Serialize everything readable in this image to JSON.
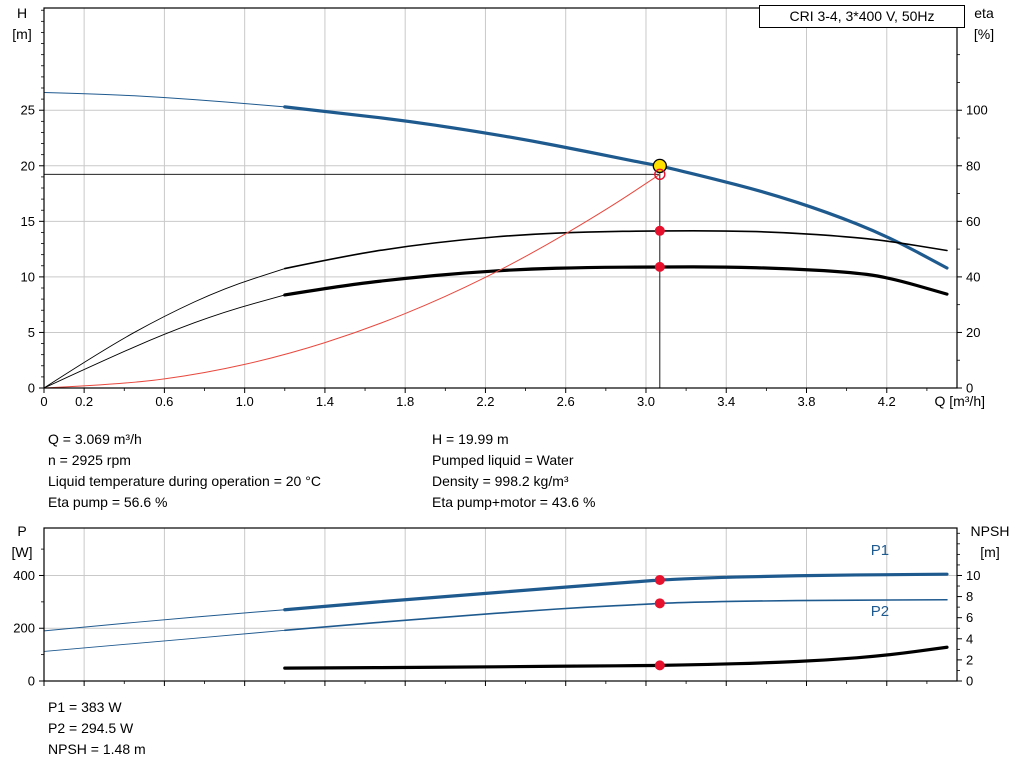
{
  "title_box": {
    "label": "CRI 3-4, 3*400 V, 50Hz"
  },
  "duty_info": {
    "left": [
      "Q = 3.069 m³/h",
      "n = 2925 rpm",
      "Liquid temperature during operation = 20 °C",
      "Eta pump = 56.6 %"
    ],
    "right": [
      "H = 19.99 m",
      "Pumped liquid = Water",
      "Density = 998.2 kg/m³",
      "Eta pump+motor = 43.6 %"
    ]
  },
  "result_info": [
    "P1 = 383 W",
    "P2 = 294.5 W",
    "NPSH = 1.48 m"
  ],
  "colors": {
    "curve_blue": "#1f5a8f",
    "curve_black": "#000000",
    "curve_red": "#e8483e",
    "marker_red": "#e8112d",
    "marker_yellow": "#ffe000",
    "grid": "#c9c9c9"
  },
  "chart_data": [
    {
      "type": "line",
      "name": "qh-eta-chart",
      "title": "CRI 3-4, 3*400 V, 50Hz",
      "x_label": "Q [m³/h]",
      "y_left_label": [
        "H",
        "[m]"
      ],
      "y_right_label": [
        "eta",
        "[%]"
      ],
      "x_range": [
        0,
        4.55
      ],
      "y_left_range": [
        0,
        34.2
      ],
      "y_right_range": [
        0,
        136.8
      ],
      "x_ticks": [
        [
          0,
          "0"
        ],
        [
          0.2,
          "0.2"
        ],
        [
          0.6,
          "0.6"
        ],
        [
          1.0,
          "1.0"
        ],
        [
          1.4,
          "1.4"
        ],
        [
          1.8,
          "1.8"
        ],
        [
          2.2,
          "2.2"
        ],
        [
          2.6,
          "2.6"
        ],
        [
          3.0,
          "3.0"
        ],
        [
          3.4,
          "3.4"
        ],
        [
          3.8,
          "3.8"
        ],
        [
          4.2,
          "4.2"
        ]
      ],
      "x_minor_step": 0.2,
      "y_left_ticks": [
        [
          0,
          "0"
        ],
        [
          5,
          "5"
        ],
        [
          10,
          "10"
        ],
        [
          15,
          "15"
        ],
        [
          20,
          "20"
        ],
        [
          25,
          "25"
        ]
      ],
      "y_left_minor_step": 1,
      "y_right_ticks": [
        [
          0,
          "0"
        ],
        [
          20,
          "20"
        ],
        [
          40,
          "40"
        ],
        [
          60,
          "60"
        ],
        [
          80,
          "80"
        ],
        [
          100,
          "100"
        ]
      ],
      "y_right_minor_step": 10,
      "grid": true,
      "series": [
        {
          "name": "h-curve-low-flow",
          "axis": "left",
          "color": "#1f5a8f",
          "width": 1,
          "points": [
            [
              0,
              26.6
            ],
            [
              0.3,
              26.45
            ],
            [
              0.6,
              26.15
            ],
            [
              0.9,
              25.75
            ],
            [
              1.2,
              25.3
            ]
          ]
        },
        {
          "name": "h-curve",
          "axis": "left",
          "color": "#1f5a8f",
          "width": 3.2,
          "points": [
            [
              1.2,
              25.3
            ],
            [
              1.5,
              24.7
            ],
            [
              1.8,
              24.05
            ],
            [
              2.1,
              23.25
            ],
            [
              2.4,
              22.35
            ],
            [
              2.7,
              21.3
            ],
            [
              3.0,
              20.2
            ],
            [
              3.069,
              19.99
            ],
            [
              3.3,
              19.0
            ],
            [
              3.6,
              17.6
            ],
            [
              3.9,
              15.85
            ],
            [
              4.2,
              13.7
            ],
            [
              4.5,
              10.8
            ]
          ]
        },
        {
          "name": "eta-pump-curve-low-flow",
          "axis": "right",
          "color": "#000000",
          "width": 0.9,
          "points": [
            [
              0,
              0
            ],
            [
              0.3,
              14
            ],
            [
              0.6,
              26
            ],
            [
              0.9,
              36
            ],
            [
              1.2,
              43
            ]
          ]
        },
        {
          "name": "eta-pump-curve",
          "axis": "right",
          "color": "#000000",
          "width": 1.6,
          "points": [
            [
              1.2,
              43
            ],
            [
              1.5,
              47.5
            ],
            [
              1.8,
              51
            ],
            [
              2.1,
              53.5
            ],
            [
              2.4,
              55.3
            ],
            [
              2.7,
              56.2
            ],
            [
              3.069,
              56.6
            ],
            [
              3.4,
              56.6
            ],
            [
              3.7,
              56
            ],
            [
              4.0,
              54.5
            ],
            [
              4.2,
              53
            ],
            [
              4.5,
              49.5
            ]
          ]
        },
        {
          "name": "eta-pump-motor-curve-low-flow",
          "axis": "right",
          "color": "#000000",
          "width": 0.9,
          "points": [
            [
              0,
              0
            ],
            [
              0.3,
              10
            ],
            [
              0.6,
              19.5
            ],
            [
              0.9,
              27.5
            ],
            [
              1.2,
              33.5
            ]
          ]
        },
        {
          "name": "eta-pump-motor-curve",
          "axis": "right",
          "color": "#000000",
          "width": 3.2,
          "points": [
            [
              1.2,
              33.5
            ],
            [
              1.5,
              37
            ],
            [
              1.8,
              39.5
            ],
            [
              2.1,
              41.5
            ],
            [
              2.4,
              42.8
            ],
            [
              2.7,
              43.4
            ],
            [
              3.069,
              43.6
            ],
            [
              3.4,
              43.6
            ],
            [
              3.7,
              43
            ],
            [
              4.0,
              41.8
            ],
            [
              4.2,
              40
            ],
            [
              4.5,
              33.8
            ]
          ]
        },
        {
          "name": "system-curve",
          "axis": "left",
          "color": "#e8483e",
          "width": 1,
          "points": [
            [
              0,
              0
            ],
            [
              0.4,
              0.33
            ],
            [
              0.8,
              1.31
            ],
            [
              1.2,
              2.94
            ],
            [
              1.6,
              5.23
            ],
            [
              2.0,
              8.17
            ],
            [
              2.4,
              11.76
            ],
            [
              2.8,
              16.01
            ],
            [
              3.069,
              19.23
            ]
          ]
        }
      ],
      "lines": [
        {
          "name": "duty-head-line",
          "orient": "h",
          "axis": "left",
          "y": 19.23,
          "x1": 0,
          "x2": 3.069,
          "color": "#000000",
          "width": 0.9
        },
        {
          "name": "duty-flow-line",
          "orient": "v",
          "axis": "left",
          "x": 3.069,
          "y1": 0,
          "y2": 19.99,
          "color": "#000000",
          "width": 0.9
        }
      ],
      "markers": [
        {
          "name": "duty-point-marker",
          "x": 3.069,
          "y": 19.99,
          "axis": "left",
          "kind": "yellow"
        },
        {
          "name": "requested-point-marker",
          "x": 3.069,
          "y": 19.23,
          "axis": "left",
          "kind": "red-open"
        },
        {
          "name": "eta-pump-duty-marker",
          "x": 3.069,
          "y": 56.6,
          "axis": "right",
          "kind": "red"
        },
        {
          "name": "eta-pump-motor-duty-marker",
          "x": 3.069,
          "y": 43.6,
          "axis": "right",
          "kind": "red"
        }
      ]
    },
    {
      "type": "line",
      "name": "power-npsh-chart",
      "x_label": "",
      "y_left_label": [
        "P",
        "[W]"
      ],
      "y_right_label": [
        "NPSH",
        "[m]"
      ],
      "x_range": [
        0,
        4.55
      ],
      "y_left_range": [
        0,
        580
      ],
      "y_right_range": [
        0,
        14.5
      ],
      "x_ticks": [
        [
          0,
          ""
        ],
        [
          0.2,
          ""
        ],
        [
          0.6,
          ""
        ],
        [
          1.0,
          ""
        ],
        [
          1.4,
          ""
        ],
        [
          1.8,
          ""
        ],
        [
          2.2,
          ""
        ],
        [
          2.6,
          ""
        ],
        [
          3.0,
          ""
        ],
        [
          3.4,
          ""
        ],
        [
          3.8,
          ""
        ],
        [
          4.2,
          ""
        ]
      ],
      "x_minor_step": 0.2,
      "y_left_ticks": [
        [
          0,
          "0"
        ],
        [
          200,
          "200"
        ],
        [
          400,
          "400"
        ]
      ],
      "y_left_minor_step": 100,
      "y_right_ticks": [
        [
          0,
          "0"
        ],
        [
          2,
          "2"
        ],
        [
          4,
          "4"
        ],
        [
          6,
          "6"
        ],
        [
          8,
          "8"
        ],
        [
          10,
          "10"
        ]
      ],
      "y_right_minor_step": 1,
      "grid": true,
      "series": [
        {
          "name": "p1-curve-low-flow",
          "axis": "left",
          "color": "#1f5a8f",
          "width": 1,
          "points": [
            [
              0,
              190
            ],
            [
              0.3,
              212
            ],
            [
              0.6,
              232
            ],
            [
              0.9,
              252
            ],
            [
              1.2,
              270
            ]
          ]
        },
        {
          "name": "p1-curve",
          "axis": "left",
          "color": "#1f5a8f",
          "width": 3.2,
          "points": [
            [
              1.2,
              270
            ],
            [
              1.5,
              290
            ],
            [
              1.8,
              308
            ],
            [
              2.1,
              326
            ],
            [
              2.4,
              344
            ],
            [
              2.7,
              362
            ],
            [
              3.0,
              379
            ],
            [
              3.069,
              383
            ],
            [
              3.3,
              391
            ],
            [
              3.6,
              397
            ],
            [
              3.9,
              401
            ],
            [
              4.2,
              403
            ],
            [
              4.5,
              405
            ]
          ],
          "label": {
            "text": "P1",
            "x": 4.12,
            "y": 478
          }
        },
        {
          "name": "p2-curve-low-flow",
          "axis": "left",
          "color": "#1f5a8f",
          "width": 0.9,
          "points": [
            [
              0,
              112
            ],
            [
              0.3,
              132
            ],
            [
              0.6,
              152
            ],
            [
              0.9,
              172
            ],
            [
              1.2,
              192
            ]
          ]
        },
        {
          "name": "p2-curve",
          "axis": "left",
          "color": "#1f5a8f",
          "width": 1.6,
          "points": [
            [
              1.2,
              192
            ],
            [
              1.5,
              212
            ],
            [
              1.8,
              230
            ],
            [
              2.1,
              248
            ],
            [
              2.4,
              265
            ],
            [
              2.7,
              280
            ],
            [
              3.0,
              291
            ],
            [
              3.069,
              294.5
            ],
            [
              3.3,
              300
            ],
            [
              3.6,
              304
            ],
            [
              3.9,
              306
            ],
            [
              4.2,
              307
            ],
            [
              4.5,
              308
            ]
          ],
          "label": {
            "text": "P2",
            "x": 4.12,
            "y": 246
          }
        },
        {
          "name": "npsh-curve",
          "axis": "right",
          "color": "#000000",
          "width": 3.2,
          "points": [
            [
              1.2,
              1.22
            ],
            [
              1.5,
              1.25
            ],
            [
              1.8,
              1.28
            ],
            [
              2.1,
              1.32
            ],
            [
              2.4,
              1.37
            ],
            [
              2.7,
              1.42
            ],
            [
              3.0,
              1.46
            ],
            [
              3.069,
              1.48
            ],
            [
              3.3,
              1.56
            ],
            [
              3.6,
              1.72
            ],
            [
              3.9,
              1.98
            ],
            [
              4.2,
              2.42
            ],
            [
              4.5,
              3.2
            ]
          ]
        }
      ],
      "lines": [],
      "markers": [
        {
          "name": "p1-duty-marker",
          "x": 3.069,
          "y": 383,
          "axis": "left",
          "kind": "red"
        },
        {
          "name": "p2-duty-marker",
          "x": 3.069,
          "y": 294.5,
          "axis": "left",
          "kind": "red"
        },
        {
          "name": "npsh-duty-marker",
          "x": 3.069,
          "y": 1.48,
          "axis": "right",
          "kind": "red"
        }
      ]
    }
  ]
}
